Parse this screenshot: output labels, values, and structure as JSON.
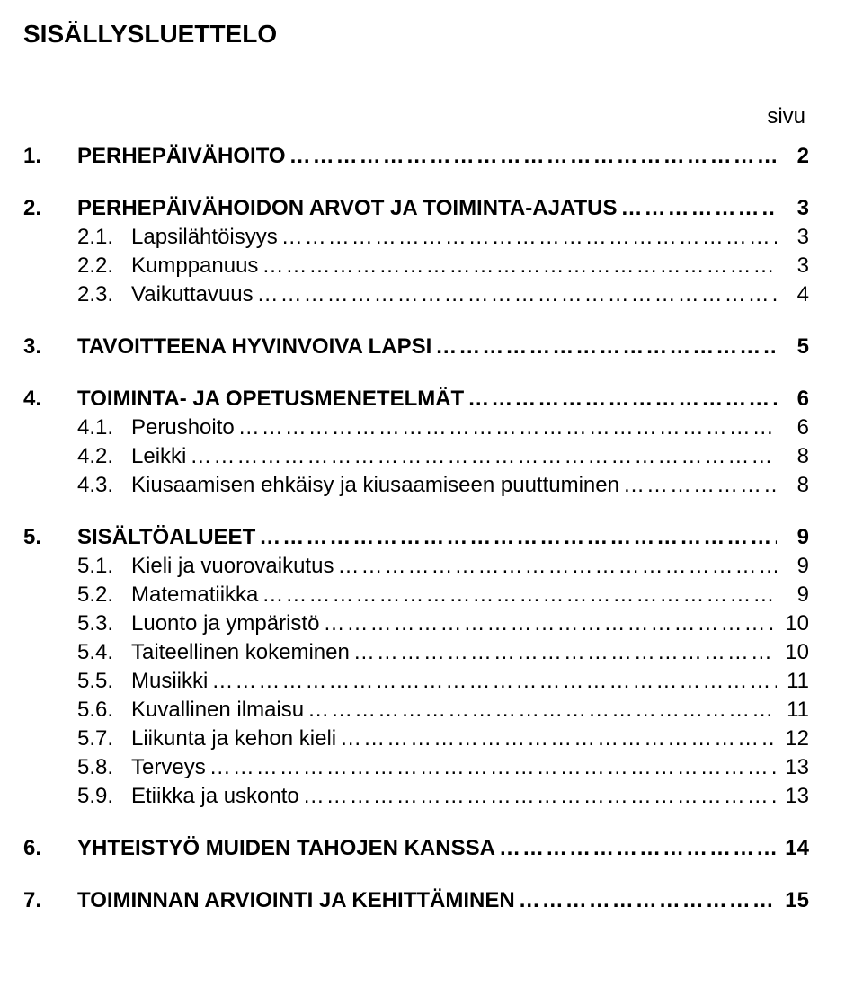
{
  "title": "SISÄLLYSLUETTELO",
  "page_label": "sivu",
  "dots": "…………………………………………………………………………………………………………",
  "sections": [
    {
      "type": "main",
      "num": "1.",
      "label": "PERHEPÄIVÄHOITO",
      "page": "2"
    },
    {
      "type": "gap"
    },
    {
      "type": "main",
      "num": "2.",
      "label": "PERHEPÄIVÄHOIDON ARVOT JA TOIMINTA-AJATUS",
      "page": "3"
    },
    {
      "type": "sub",
      "num": "2.1.",
      "label": "Lapsilähtöisyys",
      "page": "3"
    },
    {
      "type": "sub",
      "num": "2.2.",
      "label": "Kumppanuus",
      "page": "3"
    },
    {
      "type": "sub",
      "num": "2.3.",
      "label": "Vaikuttavuus",
      "page": "4"
    },
    {
      "type": "gap"
    },
    {
      "type": "main",
      "num": "3.",
      "label": "TAVOITTEENA HYVINVOIVA LAPSI",
      "page": "5"
    },
    {
      "type": "gap"
    },
    {
      "type": "main",
      "num": "4.",
      "label": "TOIMINTA- JA OPETUSMENETELMÄT",
      "page": "6"
    },
    {
      "type": "sub",
      "num": "4.1.",
      "label": "Perushoito",
      "page": "6"
    },
    {
      "type": "sub",
      "num": "4.2.",
      "label": "Leikki",
      "page": "8"
    },
    {
      "type": "sub",
      "num": "4.3.",
      "label": "Kiusaamisen ehkäisy ja kiusaamiseen puuttuminen",
      "page": "8"
    },
    {
      "type": "gap"
    },
    {
      "type": "main",
      "num": "5.",
      "label": "SISÄLTÖALUEET",
      "page": "9"
    },
    {
      "type": "sub",
      "num": "5.1.",
      "label": "Kieli ja vuorovaikutus",
      "page": "9"
    },
    {
      "type": "sub",
      "num": "5.2.",
      "label": "Matematiikka",
      "page": "9"
    },
    {
      "type": "sub",
      "num": "5.3.",
      "label": "Luonto ja ympäristö",
      "page": "10"
    },
    {
      "type": "sub",
      "num": "5.4.",
      "label": "Taiteellinen kokeminen",
      "page": "10"
    },
    {
      "type": "sub",
      "num": "5.5.",
      "label": "Musiikki",
      "page": "11"
    },
    {
      "type": "sub",
      "num": "5.6.",
      "label": "Kuvallinen ilmaisu",
      "page": "11"
    },
    {
      "type": "sub",
      "num": "5.7.",
      "label": "Liikunta ja kehon kieli",
      "page": "12"
    },
    {
      "type": "sub",
      "num": "5.8.",
      "label": "Terveys",
      "page": "13"
    },
    {
      "type": "sub",
      "num": "5.9.",
      "label": "Etiikka ja uskonto",
      "page": "13"
    },
    {
      "type": "gap"
    },
    {
      "type": "main",
      "num": "6.",
      "label": "YHTEISTYÖ MUIDEN TAHOJEN KANSSA",
      "page": "14"
    },
    {
      "type": "gap"
    },
    {
      "type": "main",
      "num": "7.",
      "label": "TOIMINNAN ARVIOINTI JA KEHITTÄMINEN",
      "page": "15"
    }
  ]
}
